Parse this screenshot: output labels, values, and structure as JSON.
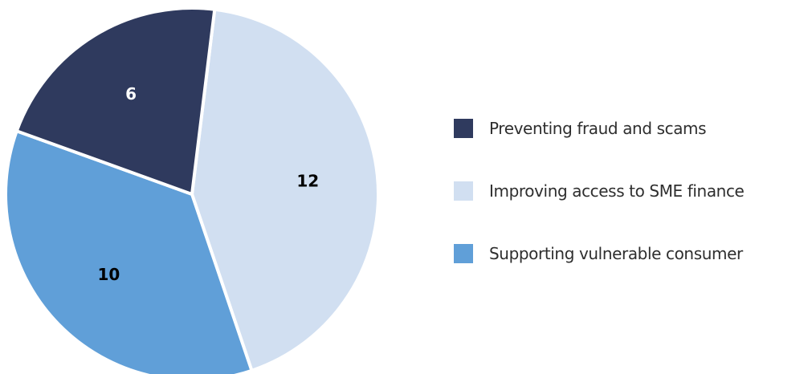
{
  "chart_data": {
    "type": "pie",
    "title": "",
    "slices": [
      {
        "label": "Preventing fraud and scams",
        "value": 6,
        "color": "#2f3a5e",
        "label_color": "#ffffff"
      },
      {
        "label": "Improving access to SME finance",
        "value": 12,
        "color": "#d1dff1",
        "label_color": "#000000"
      },
      {
        "label": "Supporting vulnerable consumer",
        "value": 10,
        "color": "#609fd8",
        "label_color": "#000000"
      }
    ],
    "legend_position": "right"
  }
}
